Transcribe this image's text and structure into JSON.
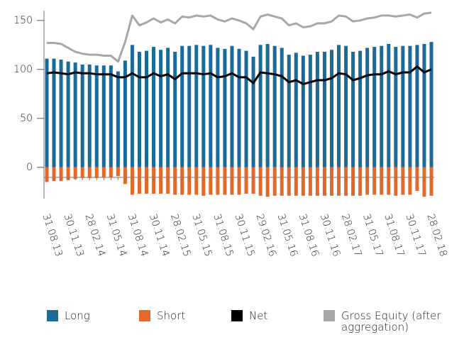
{
  "chart_data": {
    "type": "bar",
    "categories": [
      "31.08.13",
      null,
      null,
      "30.11.13",
      null,
      null,
      "28.02.14",
      null,
      null,
      "31.05.14",
      null,
      null,
      "31.08.14",
      null,
      null,
      "30.11.14",
      null,
      null,
      "28.02.15",
      null,
      null,
      "31.05.15",
      null,
      null,
      "31.08.15",
      null,
      null,
      "30.11.15",
      null,
      null,
      "29.02.16",
      null,
      null,
      "31.05.16",
      null,
      null,
      "31.08.16",
      null,
      null,
      "30.11.16",
      null,
      null,
      "28.02.17",
      null,
      null,
      "31.05.17",
      null,
      null,
      "31.08.17",
      null,
      null,
      "30.11.17",
      null,
      null,
      "28.02.18"
    ],
    "series": [
      {
        "name": "Long",
        "type": "bar",
        "color": "#1b6a98",
        "values": [
          111,
          111,
          110,
          108,
          107,
          105,
          105,
          104,
          104,
          104,
          98,
          109,
          125,
          118,
          119,
          123,
          120,
          122,
          118,
          124,
          124,
          125,
          124,
          125,
          122,
          121,
          124,
          121,
          119,
          113,
          125,
          126,
          124,
          122,
          115,
          117,
          114,
          115,
          118,
          118,
          120,
          125,
          124,
          118,
          119,
          122,
          123,
          124,
          126,
          123,
          124,
          124,
          125,
          126,
          128
        ]
      },
      {
        "name": "Short",
        "type": "bar",
        "color": "#e2692a",
        "values": [
          -15,
          -14,
          -14,
          -13,
          -12,
          -11,
          -11,
          -11,
          -10,
          -10,
          -9,
          -17,
          -28,
          -27,
          -27,
          -27,
          -27,
          -27,
          -28,
          -28,
          -28,
          -28,
          -29,
          -28,
          -28,
          -28,
          -28,
          -28,
          -27,
          -27,
          -29,
          -30,
          -29,
          -29,
          -29,
          -29,
          -29,
          -29,
          -29,
          -29,
          -29,
          -29,
          -29,
          -29,
          -29,
          -28,
          -28,
          -28,
          -28,
          -29,
          -28,
          -28,
          -24,
          -30,
          -29
        ]
      },
      {
        "name": "Net",
        "type": "line",
        "color": "#000000",
        "values": [
          96,
          97,
          96,
          95,
          97,
          96,
          96,
          95,
          95,
          95,
          92,
          92,
          96,
          92,
          92,
          96,
          93,
          95,
          90,
          96,
          96,
          96,
          95,
          96,
          92,
          93,
          96,
          92,
          92,
          86,
          97,
          96,
          95,
          93,
          87,
          89,
          85,
          87,
          89,
          89,
          91,
          96,
          95,
          89,
          91,
          94,
          95,
          95,
          98,
          95,
          97,
          97,
          103,
          97,
          100
        ]
      },
      {
        "name": "Gross Equity (after aggregation)",
        "type": "line",
        "color": "#a8a8a8",
        "values": [
          127,
          127,
          126,
          122,
          118,
          116,
          115,
          115,
          114,
          114,
          108,
          128,
          155,
          145,
          148,
          152,
          148,
          151,
          147,
          154,
          153,
          155,
          154,
          155,
          151,
          149,
          152,
          150,
          147,
          141,
          154,
          156,
          154,
          152,
          145,
          147,
          143,
          144,
          147,
          147,
          149,
          155,
          154,
          149,
          150,
          152,
          153,
          155,
          155,
          154,
          155,
          156,
          153,
          157,
          158
        ]
      }
    ],
    "ylim": [
      -32,
      160
    ],
    "yticks": [
      0,
      50,
      100,
      150
    ]
  }
}
